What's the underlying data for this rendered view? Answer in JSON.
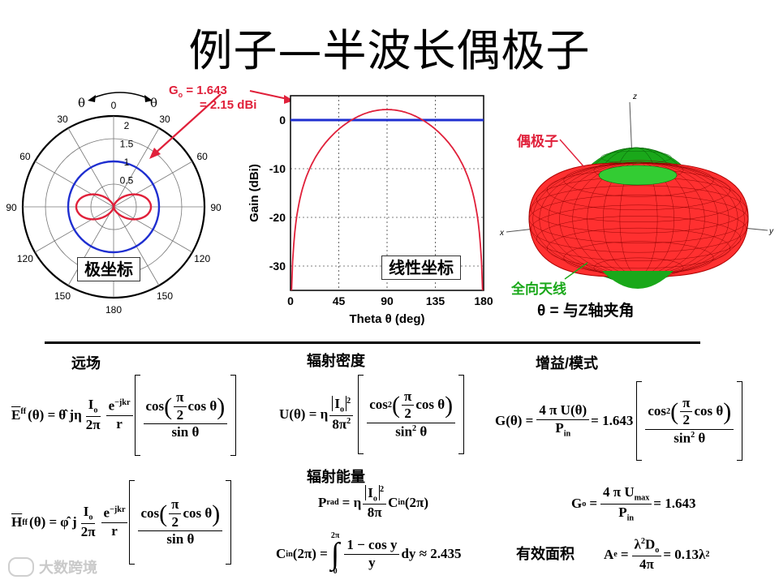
{
  "title": "例子—半波长偶极子",
  "polar": {
    "theta_left": "θ",
    "theta_right": "θ",
    "angle_labels": [
      "0",
      "30",
      "30",
      "60",
      "60",
      "90",
      "90",
      "120",
      "120",
      "150",
      "150",
      "180"
    ],
    "radial_labels": [
      "2",
      "1.5",
      "1",
      "0.5"
    ],
    "go_label_1": "G",
    "go_label_sub": "o",
    "go_label_2": " = 1.643",
    "dbi_label": "= 2.15 dBi",
    "box_label": "极坐标",
    "colors": {
      "pattern": "#e0203a",
      "isotropic": "#1f2fd0",
      "arrow": "#e0203a"
    }
  },
  "chart_data": {
    "type": "line",
    "xlabel": "Theta θ (deg)",
    "ylabel": "Gain (dBi)",
    "x_ticks": [
      0,
      45,
      90,
      135,
      180
    ],
    "y_ticks": [
      0,
      -10,
      -20,
      -30
    ],
    "xlim": [
      0,
      180
    ],
    "ylim": [
      -35,
      5
    ],
    "grid": true,
    "series": [
      {
        "color": "#e0203a",
        "formula": "10log10(1.643*(cos(pi/2 cos θ)/sin θ)^2)"
      },
      {
        "color": "#1f2fd0",
        "constant": 0
      }
    ],
    "box_label": "线性坐标"
  },
  "threed": {
    "axis_z": "z",
    "axis_x": "x",
    "axis_y": "y",
    "dipole_label": "偶极子",
    "omni_label": "全向天线",
    "theta_note": "θ  =  与Z轴夹角",
    "colors": {
      "dipole": "#e0203a",
      "omni": "#1aa81a",
      "mesh_red": "#ff3030",
      "mesh_green": "#33cc33"
    }
  },
  "sections": {
    "far_field": "远场",
    "radiation_intensity": "辐射密度",
    "gain_mode": "增益/模式",
    "radiated_energy": "辐射能量",
    "effective_area": "有效面积"
  },
  "equations": {
    "E_lhs": "E",
    "E_sup": "ff",
    "H_lhs": "H",
    "H_sup": "ff",
    "theta": "(θ) =",
    "e_theta": "θ̂ jη",
    "h_phi": "φ̂ j",
    "Io": "I",
    "Io_sub": "o",
    "two_pi": "2π",
    "exp": "e",
    "exp_sup": "−jkr",
    "r": "r",
    "cos": "cos",
    "pi": "π",
    "two": "2",
    "cos_theta": "cos θ",
    "sin_theta": "sin θ",
    "U_lhs": "U(θ) = η",
    "eight_pi2": "8π",
    "G_lhs": "G(θ) =",
    "four_pi_U": "4 π U(θ)",
    "P_in": "P",
    "P_in_sub": "in",
    "eq_1643": "= 1.643",
    "Go_lhs": "G",
    "Go_sub": "o",
    "four_pi_Umax": "4 π U",
    "Umax_sub": "max",
    "Go_rhs": "= 1.643",
    "Prad": "P",
    "Prad_sub": "rad",
    "eq_eta": "= η",
    "eight_pi": "8π",
    "Cin": "C",
    "Cin_sub": "in",
    "two_pi_paren": "(2π)",
    "Cin_lhs_rest": "(2π) =",
    "int_upper": "2π",
    "int_lower": "0",
    "integrand_num": "1 − cos y",
    "integrand_den": "y",
    "dy_result": "dy ≈ 2.435",
    "Ae": "A",
    "Ae_sub": "e",
    "Ae_num": "λ",
    "Ae_num2": "D",
    "Ae_num2_sub": "o",
    "Ae_den": "4π",
    "Ae_rhs": "= 0.13λ"
  },
  "watermark": "大数跨境"
}
